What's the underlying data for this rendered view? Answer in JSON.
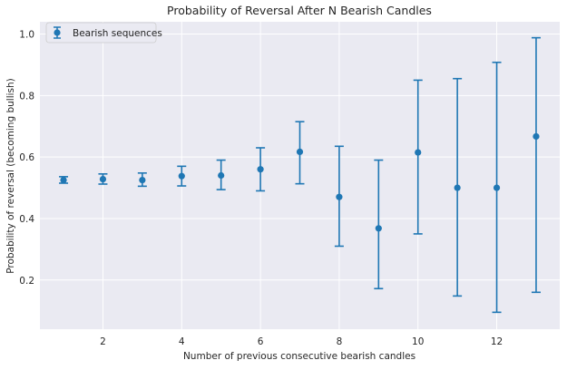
{
  "chart_data": {
    "type": "scatter",
    "title": "Probability of Reversal After N Bearish Candles",
    "xlabel": "Number of previous consecutive bearish candles",
    "ylabel": "Probability of reversal (becoming bullish)",
    "xlim": [
      0.4,
      13.6
    ],
    "ylim": [
      0.04,
      1.04
    ],
    "xticks": [
      2,
      4,
      6,
      8,
      10,
      12
    ],
    "yticks": [
      0.2,
      0.4,
      0.6,
      0.8,
      1.0
    ],
    "xtick_labels": [
      "2",
      "4",
      "6",
      "8",
      "10",
      "12"
    ],
    "ytick_labels": [
      "0.2",
      "0.4",
      "0.6",
      "0.8",
      "1.0"
    ],
    "grid": true,
    "legend_position": "top-left",
    "series": [
      {
        "name": "Bearish sequences",
        "color": "#1f77b4",
        "x": [
          1,
          2,
          3,
          4,
          5,
          6,
          7,
          8,
          9,
          10,
          11,
          12,
          13
        ],
        "y": [
          0.525,
          0.528,
          0.525,
          0.538,
          0.54,
          0.56,
          0.617,
          0.47,
          0.368,
          0.615,
          0.5,
          0.5,
          0.667
        ],
        "y_lower": [
          0.515,
          0.512,
          0.505,
          0.506,
          0.494,
          0.49,
          0.513,
          0.31,
          0.172,
          0.35,
          0.148,
          0.095,
          0.16
        ],
        "y_upper": [
          0.536,
          0.545,
          0.548,
          0.57,
          0.59,
          0.63,
          0.715,
          0.635,
          0.59,
          0.85,
          0.855,
          0.908,
          0.988
        ]
      }
    ]
  }
}
